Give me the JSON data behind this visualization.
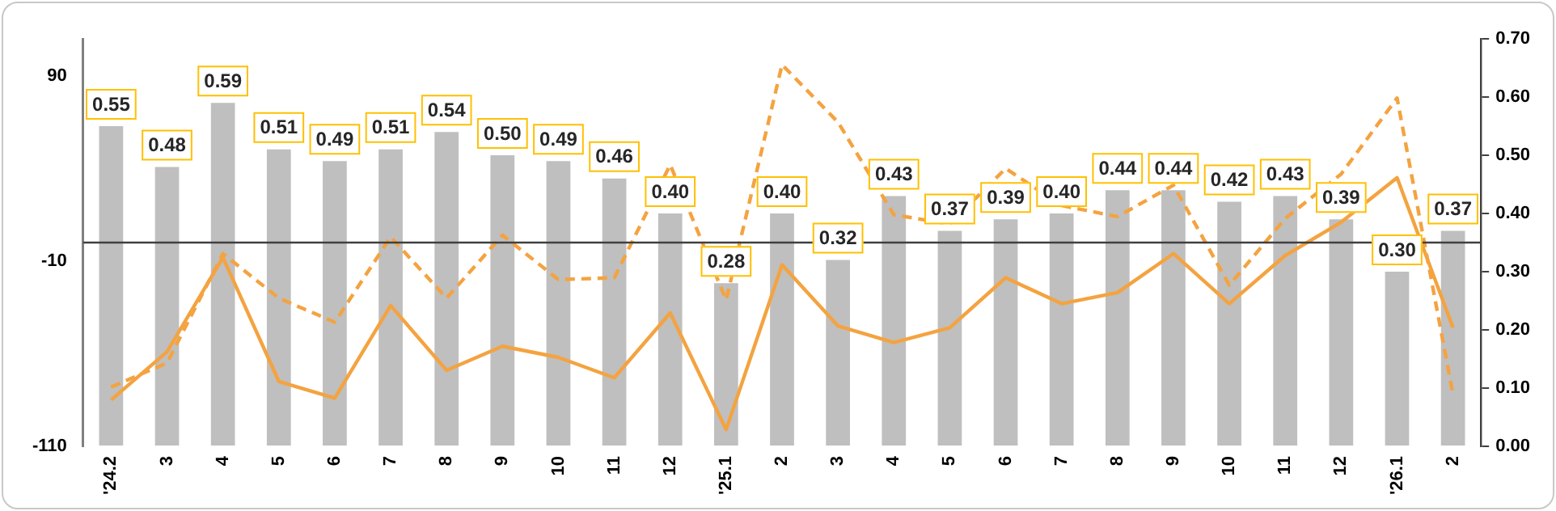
{
  "chart_data": {
    "type": "bar",
    "categories": [
      "'24.2",
      "3",
      "4",
      "5",
      "6",
      "7",
      "8",
      "9",
      "10",
      "11",
      "12",
      "'25.1",
      "2",
      "3",
      "4",
      "5",
      "6",
      "7",
      "8",
      "9",
      "10",
      "11",
      "12",
      "'26.1",
      "2"
    ],
    "series": [
      {
        "axis": "y2",
        "color": "#bfbfbf",
        "values": [
          0.55,
          0.48,
          0.59,
          0.51,
          0.49,
          0.51,
          0.54,
          0.5,
          0.49,
          0.46,
          0.4,
          0.28,
          0.4,
          0.32,
          0.43,
          0.37,
          0.39,
          0.4,
          0.44,
          0.44,
          0.42,
          0.43,
          0.39,
          0.3,
          0.37
        ],
        "value_labels": [
          "0.55",
          "0.48",
          "0.59",
          "0.51",
          "0.49",
          "0.51",
          "0.54",
          "0.50",
          "0.49",
          "0.46",
          "0.40",
          "0.28",
          "0.40",
          "0.32",
          "0.43",
          "0.37",
          "0.39",
          "0.40",
          "0.44",
          "0.44",
          "0.42",
          "0.43",
          "0.39",
          "0.30",
          "0.37"
        ]
      },
      {
        "type": "line",
        "axis": "y",
        "color": "#f4a340",
        "line_style": "solid",
        "values": [
          -85,
          -59,
          -8,
          -75,
          -84,
          -34,
          -69,
          -56,
          -62,
          -73,
          -38,
          -101,
          -12,
          -45,
          -54,
          -46,
          -19,
          -33,
          -27,
          -6,
          -33,
          -7,
          11,
          35,
          -46
        ]
      },
      {
        "type": "line",
        "axis": "y",
        "color": "#f4a340",
        "line_style": "dashed",
        "values": [
          -78,
          -65,
          -6,
          -30,
          -43,
          3,
          -30,
          4,
          -20,
          -19,
          42,
          -31,
          96,
          65,
          15,
          10,
          40,
          20,
          14,
          31,
          -23,
          13,
          37,
          78,
          -82
        ]
      }
    ],
    "ylim": [
      -110,
      110
    ],
    "yticks": [
      -110,
      -10,
      90
    ],
    "y2lim": [
      0,
      0.7
    ],
    "y2ticks": [
      {
        "value": 0,
        "label": "0.00"
      },
      {
        "value": 0.1,
        "label": "0.10"
      },
      {
        "value": 0.2,
        "label": "0.20"
      },
      {
        "value": 0.3,
        "label": "0.30"
      },
      {
        "value": 0.4,
        "label": "0.40"
      },
      {
        "value": 0.5,
        "label": "0.50"
      },
      {
        "value": 0.6,
        "label": "0.60"
      },
      {
        "value": 0.7,
        "label": "0.70"
      }
    ],
    "ref_lines": [
      {
        "axis": "y",
        "value": 0,
        "color": "#404040"
      }
    ],
    "grid": false,
    "legend": false,
    "marker": "none"
  }
}
